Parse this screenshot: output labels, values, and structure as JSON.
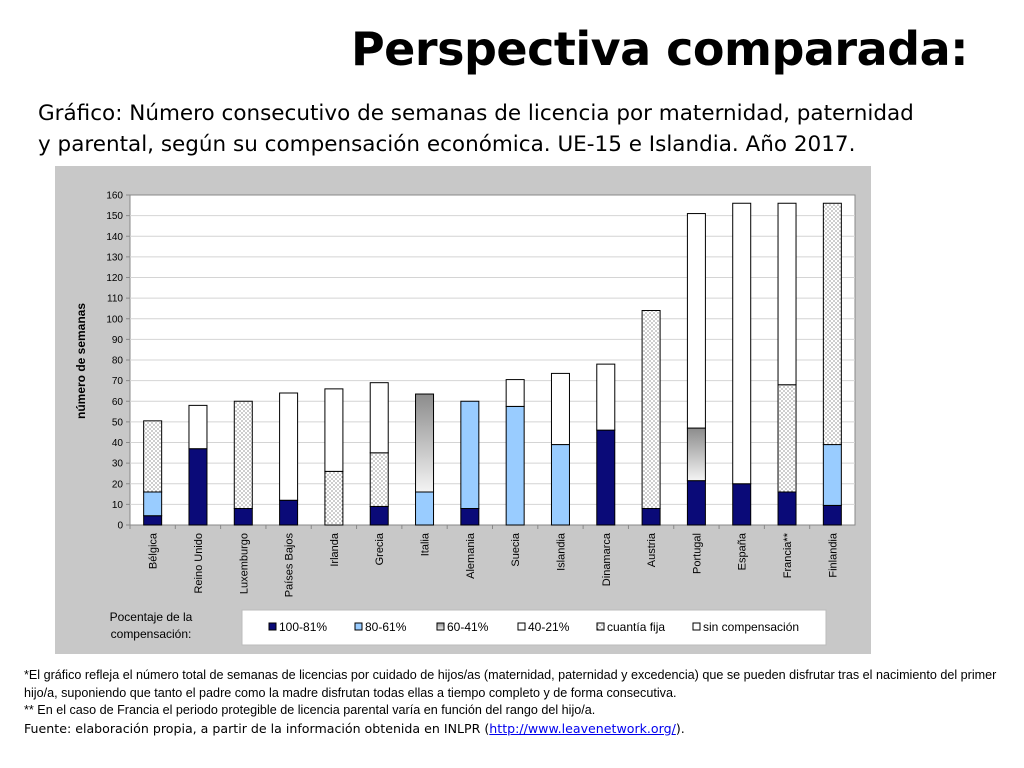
{
  "page": {
    "title": "Perspectiva comparada:",
    "subtitle_line1": "Gráfico: Número consecutivo de semanas de licencia por maternidad, paternidad",
    "subtitle_line2": "y parental, según su compensación económica. UE-15 e Islandia. Año 2017."
  },
  "footnotes": {
    "note1": "*El gráfico refleja el número total de semanas de licencias por cuidado de hijos/as (maternidad, paternidad y excedencia) que se pueden disfrutar tras el nacimiento del primer hijo/a, suponiendo que tanto el padre como la madre disfrutan todas ellas a tiempo completo y de forma consecutiva.",
    "note2": "** En el caso de Francia el periodo protegible de licencia parental varía en función del rango del hijo/a.",
    "source_prefix": "Fuente: elaboración propia, a partir de la información obtenida en INLPR (",
    "source_link": "http://www.leavenetwork.org/",
    "source_suffix": ")."
  },
  "colors": {
    "100-81%": "#0a0a78",
    "80-61%": "#99ccff",
    "60-41%": "gradient-gray",
    "40-21%": "#ffffff",
    "cuantia_fija": "dotted",
    "sin_compensacion": "#ffffff"
  },
  "chart_data": {
    "type": "bar",
    "stacked": true,
    "ylabel": "número de semanas",
    "xlabel": "",
    "ylim": [
      0,
      160
    ],
    "yticks": [
      0,
      10,
      20,
      30,
      40,
      50,
      60,
      70,
      80,
      90,
      100,
      110,
      120,
      130,
      140,
      150,
      160
    ],
    "grid": true,
    "legend_title": "Pocentaje de la compensación:",
    "legend_position": "bottom",
    "categories": [
      "Bélgica",
      "Reino Unido",
      "Luxemburgo",
      "Países Bajos",
      "Irlanda",
      "Grecia",
      "Italia",
      "Alemania",
      "Suecia",
      "Islandia",
      "Dinamarca",
      "Austria",
      "Portugal",
      "España",
      "Francia**",
      "Finlandia"
    ],
    "series": [
      {
        "name": "100-81%",
        "values": [
          4.5,
          37,
          8,
          12,
          0,
          9,
          0,
          8,
          0,
          0,
          46,
          8,
          21.5,
          20,
          16,
          9.5
        ]
      },
      {
        "name": "80-61%",
        "values": [
          11.5,
          0,
          0,
          0,
          0,
          0,
          16,
          52,
          57.5,
          39,
          0,
          0,
          0,
          0,
          0,
          29.5
        ]
      },
      {
        "name": "60-41%",
        "values": [
          0,
          0,
          0,
          0,
          0,
          0,
          47.5,
          0,
          0,
          0,
          0,
          0,
          25.5,
          0,
          0,
          0
        ]
      },
      {
        "name": "40-21%",
        "values": [
          0,
          0,
          0,
          0,
          0,
          0,
          0,
          0,
          0,
          0,
          0,
          0,
          0,
          0,
          0,
          0
        ]
      },
      {
        "name": "cuantía fija",
        "values": [
          34.5,
          0,
          52,
          0,
          26,
          26,
          0,
          0,
          0,
          0,
          0,
          96,
          0,
          0,
          52,
          117
        ]
      },
      {
        "name": "sin compensación",
        "values": [
          0,
          21,
          0,
          52,
          40,
          34,
          0,
          0,
          13,
          34.5,
          32,
          0,
          104,
          136,
          88,
          0
        ]
      }
    ]
  }
}
